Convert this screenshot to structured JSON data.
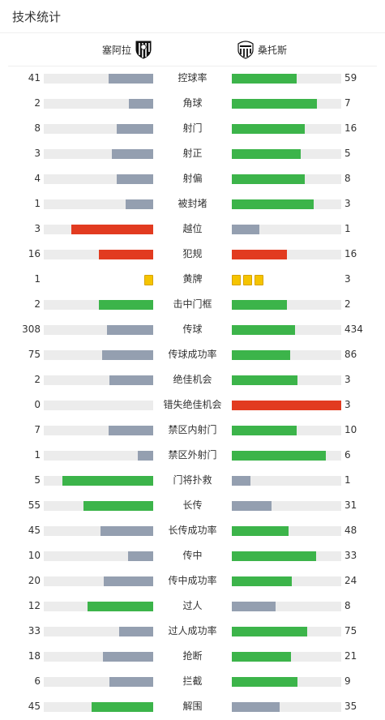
{
  "title": "技术统计",
  "colors": {
    "win": "#3cb44a",
    "lose": "#949fb0",
    "foul": "#e23b20",
    "track": "#ececec"
  },
  "home": {
    "name": "塞阿拉",
    "logo_icon": "ceara-crest-icon"
  },
  "away": {
    "name": "桑托斯",
    "logo_icon": "santos-crest-icon"
  },
  "stats": [
    {
      "label": "控球率",
      "home": 41,
      "away": 59,
      "hf": 0.41,
      "af": 0.59,
      "hc": "lose",
      "ac": "win"
    },
    {
      "label": "角球",
      "home": 2,
      "away": 7,
      "hf": 0.22,
      "af": 0.78,
      "hc": "lose",
      "ac": "win"
    },
    {
      "label": "射门",
      "home": 8,
      "away": 16,
      "hf": 0.33,
      "af": 0.67,
      "hc": "lose",
      "ac": "win"
    },
    {
      "label": "射正",
      "home": 3,
      "away": 5,
      "hf": 0.38,
      "af": 0.63,
      "hc": "lose",
      "ac": "win"
    },
    {
      "label": "射偏",
      "home": 4,
      "away": 8,
      "hf": 0.33,
      "af": 0.67,
      "hc": "lose",
      "ac": "win"
    },
    {
      "label": "被封堵",
      "home": 1,
      "away": 3,
      "hf": 0.25,
      "af": 0.75,
      "hc": "lose",
      "ac": "win"
    },
    {
      "label": "越位",
      "home": 3,
      "away": 1,
      "hf": 0.75,
      "af": 0.25,
      "hc": "foul",
      "ac": "lose"
    },
    {
      "label": "犯规",
      "home": 16,
      "away": 16,
      "hf": 0.5,
      "af": 0.5,
      "hc": "foul",
      "ac": "foul"
    },
    {
      "label": "黄牌",
      "home": 1,
      "away": 3,
      "cards": true
    },
    {
      "label": "击中门框",
      "home": 2,
      "away": 2,
      "hf": 0.5,
      "af": 0.5,
      "hc": "win",
      "ac": "win"
    },
    {
      "label": "传球",
      "home": 308,
      "away": 434,
      "hf": 0.42,
      "af": 0.58,
      "hc": "lose",
      "ac": "win"
    },
    {
      "label": "传球成功率",
      "home": 75,
      "away": 86,
      "hf": 0.47,
      "af": 0.53,
      "hc": "lose",
      "ac": "win"
    },
    {
      "label": "绝佳机会",
      "home": 2,
      "away": 3,
      "hf": 0.4,
      "af": 0.6,
      "hc": "lose",
      "ac": "win"
    },
    {
      "label": "错失绝佳机会",
      "home": 0,
      "away": 3,
      "hf": 0,
      "af": 1,
      "hc": "lose",
      "ac": "foul"
    },
    {
      "label": "禁区内射门",
      "home": 7,
      "away": 10,
      "hf": 0.41,
      "af": 0.59,
      "hc": "lose",
      "ac": "win"
    },
    {
      "label": "禁区外射门",
      "home": 1,
      "away": 6,
      "hf": 0.14,
      "af": 0.86,
      "hc": "lose",
      "ac": "win"
    },
    {
      "label": "门将扑救",
      "home": 5,
      "away": 1,
      "hf": 0.83,
      "af": 0.17,
      "hc": "win",
      "ac": "lose"
    },
    {
      "label": "长传",
      "home": 55,
      "away": 31,
      "hf": 0.64,
      "af": 0.36,
      "hc": "win",
      "ac": "lose"
    },
    {
      "label": "长传成功率",
      "home": 45,
      "away": 48,
      "hf": 0.48,
      "af": 0.52,
      "hc": "lose",
      "ac": "win"
    },
    {
      "label": "传中",
      "home": 10,
      "away": 33,
      "hf": 0.23,
      "af": 0.77,
      "hc": "lose",
      "ac": "win"
    },
    {
      "label": "传中成功率",
      "home": 20,
      "away": 24,
      "hf": 0.45,
      "af": 0.55,
      "hc": "lose",
      "ac": "win"
    },
    {
      "label": "过人",
      "home": 12,
      "away": 8,
      "hf": 0.6,
      "af": 0.4,
      "hc": "win",
      "ac": "lose"
    },
    {
      "label": "过人成功率",
      "home": 33,
      "away": 75,
      "hf": 0.31,
      "af": 0.69,
      "hc": "lose",
      "ac": "win"
    },
    {
      "label": "抢断",
      "home": 18,
      "away": 21,
      "hf": 0.46,
      "af": 0.54,
      "hc": "lose",
      "ac": "win"
    },
    {
      "label": "拦截",
      "home": 6,
      "away": 9,
      "hf": 0.4,
      "af": 0.6,
      "hc": "lose",
      "ac": "win"
    },
    {
      "label": "解围",
      "home": 45,
      "away": 35,
      "hf": 0.56,
      "af": 0.44,
      "hc": "win",
      "ac": "lose"
    }
  ]
}
